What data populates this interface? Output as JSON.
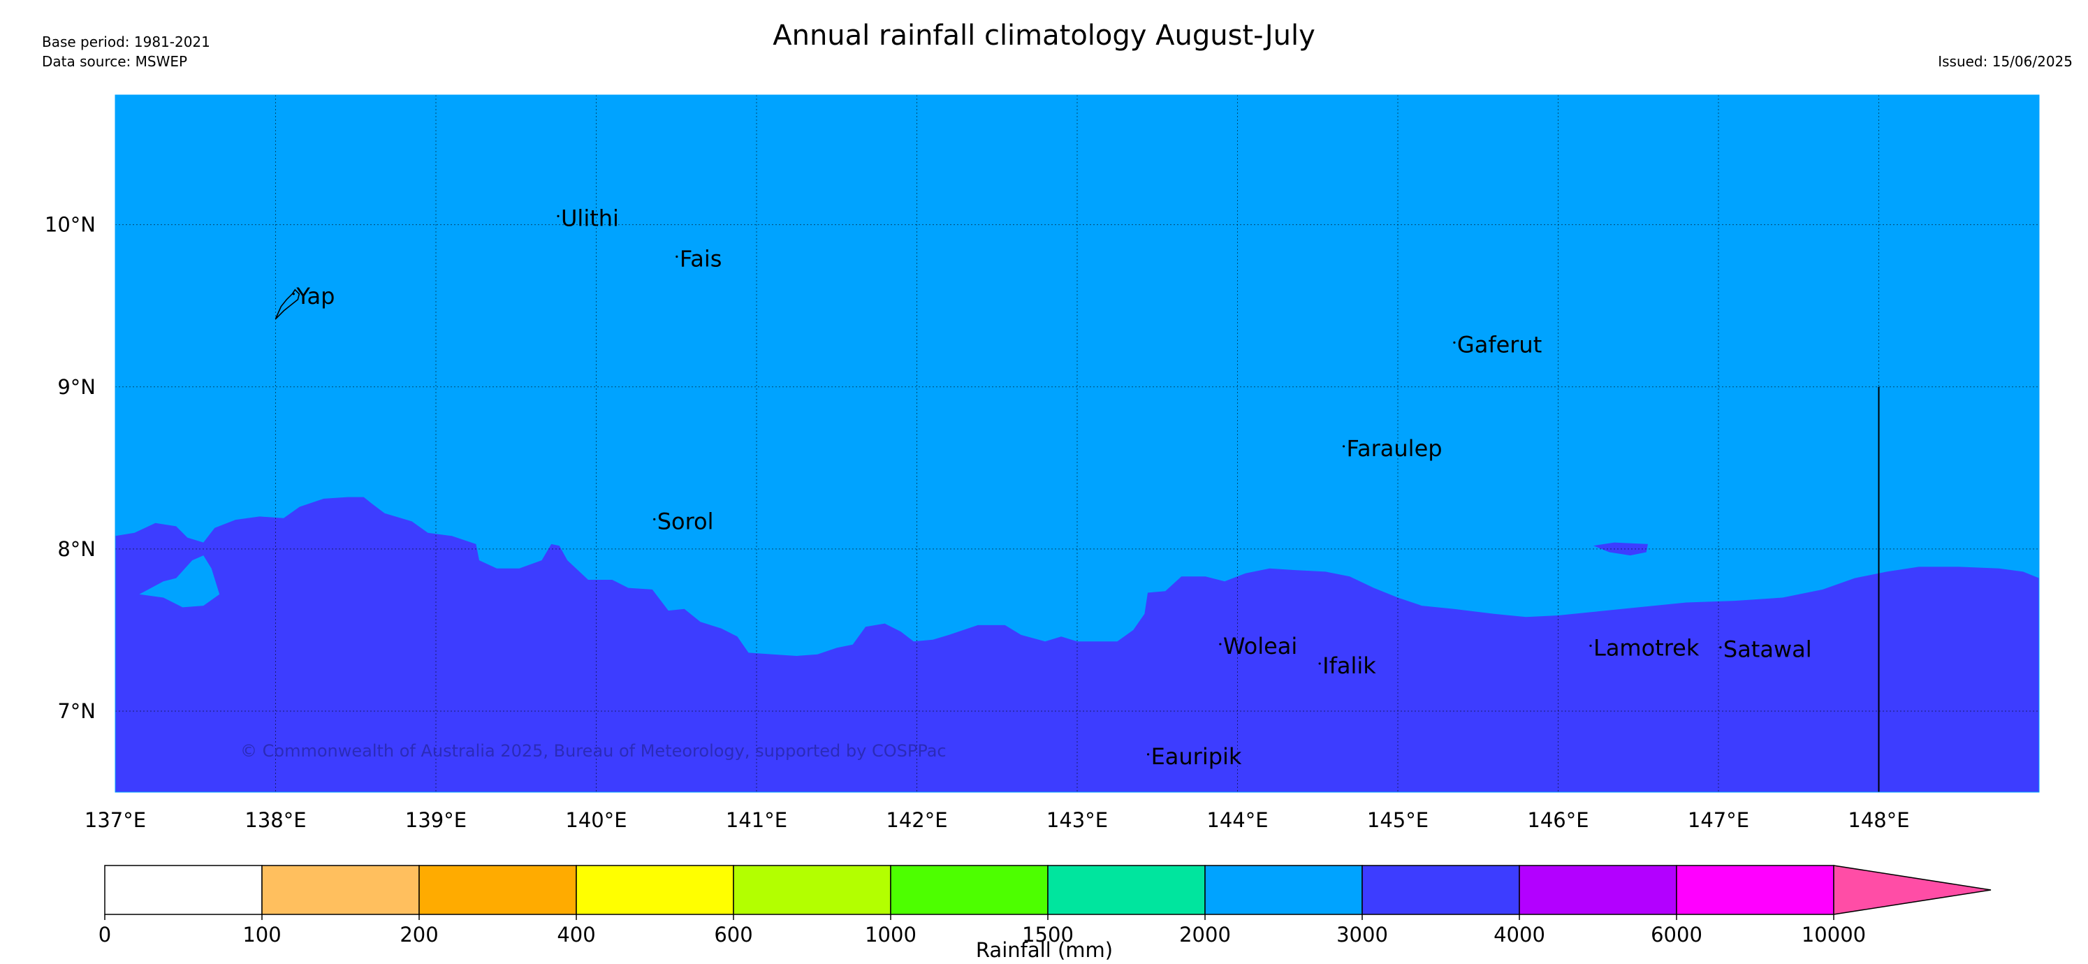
{
  "header": {
    "base_period": "Base period: 1981-2021",
    "data_source": "Data source: MSWEP",
    "title": "Annual rainfall climatology August-July",
    "issued": "Issued: 15/06/2025"
  },
  "map": {
    "extent": {
      "lon_min": 137.0,
      "lon_max": 149.0,
      "lat_min": 6.5,
      "lat_max": 10.8
    },
    "lon_ticks": [
      {
        "value": 137,
        "label": "137°E"
      },
      {
        "value": 138,
        "label": "138°E"
      },
      {
        "value": 139,
        "label": "139°E"
      },
      {
        "value": 140,
        "label": "140°E"
      },
      {
        "value": 141,
        "label": "141°E"
      },
      {
        "value": 142,
        "label": "142°E"
      },
      {
        "value": 143,
        "label": "143°E"
      },
      {
        "value": 144,
        "label": "144°E"
      },
      {
        "value": 145,
        "label": "145°E"
      },
      {
        "value": 146,
        "label": "146°E"
      },
      {
        "value": 147,
        "label": "147°E"
      },
      {
        "value": 148,
        "label": "148°E"
      }
    ],
    "lat_ticks": [
      {
        "value": 10,
        "label": "10°N"
      },
      {
        "value": 9,
        "label": "9°N"
      },
      {
        "value": 8,
        "label": "8°N"
      },
      {
        "value": 7,
        "label": "7°N"
      }
    ],
    "places": [
      {
        "name": "Yap",
        "lon": 138.13,
        "lat": 9.53
      },
      {
        "name": "Ulithi",
        "lon": 139.78,
        "lat": 10.01
      },
      {
        "name": "Fais",
        "lon": 140.52,
        "lat": 9.76
      },
      {
        "name": "Gaferut",
        "lon": 145.37,
        "lat": 9.23
      },
      {
        "name": "Faraulep",
        "lon": 144.68,
        "lat": 8.59
      },
      {
        "name": "Sorol",
        "lon": 140.38,
        "lat": 8.14
      },
      {
        "name": "Woleai",
        "lon": 143.91,
        "lat": 7.37
      },
      {
        "name": "Ifalik",
        "lon": 144.53,
        "lat": 7.25
      },
      {
        "name": "Lamotrek",
        "lon": 146.22,
        "lat": 7.36
      },
      {
        "name": "Satawal",
        "lon": 147.03,
        "lat": 7.35
      },
      {
        "name": "Eauripik",
        "lon": 143.46,
        "lat": 6.69
      }
    ],
    "contours": {
      "high_band_color": "#3d3dff",
      "low_band_color": "#00a3ff",
      "boundary_line_lon": 148.0,
      "boundary_line_lat_top": 9.0
    },
    "copyright": "© Commonwealth of Australia 2025, Bureau of Meteorology, supported by COSPPac"
  },
  "colorbar": {
    "ticks": [
      "0",
      "100",
      "200",
      "400",
      "600",
      "1000",
      "1500",
      "2000",
      "3000",
      "4000",
      "6000",
      "10000"
    ],
    "colors": [
      "#ffffff",
      "#ffbf5e",
      "#ffab00",
      "#ffff00",
      "#b3ff00",
      "#4dff00",
      "#00e59e",
      "#00a3ff",
      "#3d3dff",
      "#b300ff",
      "#ff00ff"
    ],
    "extend_color": "#ff4da6",
    "label": "Rainfall (mm)"
  }
}
